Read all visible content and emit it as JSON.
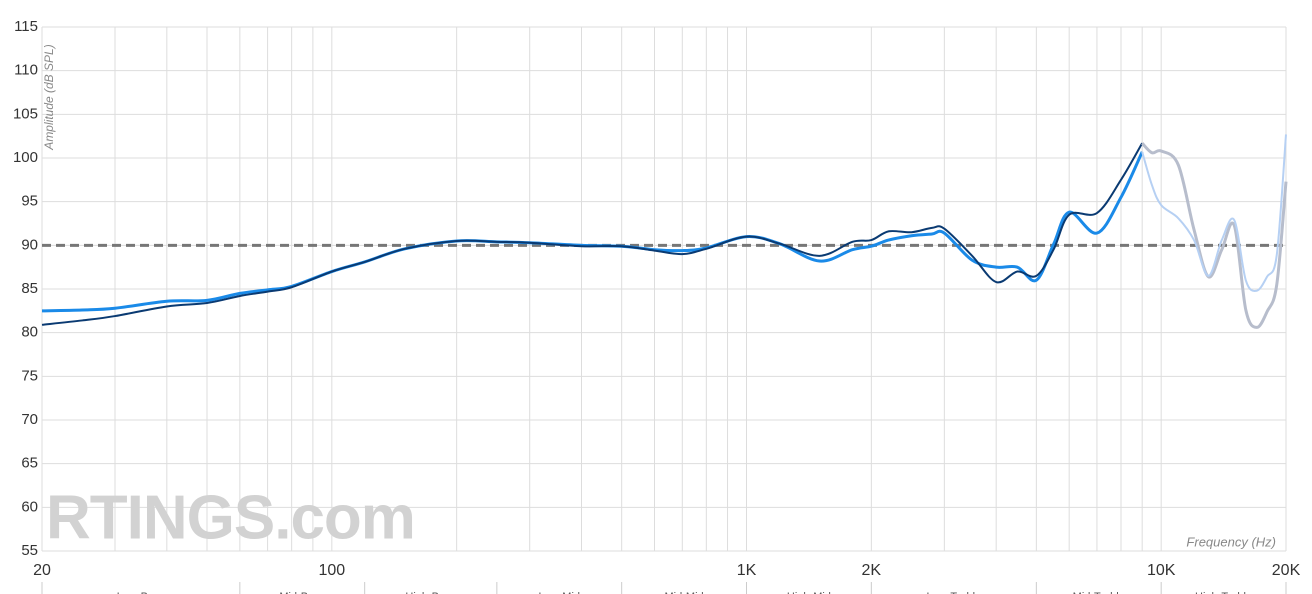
{
  "chart_data": {
    "type": "line",
    "y_label": "Amplitude (dB SPL)",
    "x_label": "Frequency (Hz)",
    "watermark": "RTINGS.com",
    "log_x": true,
    "grid": true,
    "xlim": [
      20,
      20000
    ],
    "ylim": [
      55,
      115
    ],
    "yticks": [
      55,
      60,
      65,
      70,
      75,
      80,
      85,
      90,
      95,
      100,
      105,
      110,
      115
    ],
    "xticks": [
      20,
      100,
      {
        "value": 1000,
        "label": "1K"
      },
      {
        "value": 2000,
        "label": "2K"
      },
      {
        "value": 10000,
        "label": "10K"
      },
      {
        "value": 20000,
        "label": "20K"
      }
    ],
    "x_minor_grid": [
      30,
      40,
      50,
      60,
      70,
      80,
      90,
      200,
      300,
      400,
      500,
      600,
      700,
      800,
      900,
      3000,
      4000,
      5000,
      6000,
      7000,
      8000,
      9000
    ],
    "reference_line": 90,
    "bands": {
      "labels": [
        "Low-Bass",
        "Mid-Bass",
        "High-Bass",
        "Low-Mid",
        "Mid-Mid",
        "High-Mid",
        "Low-Treble",
        "Mid-Treble",
        "High-Treble"
      ],
      "edges": [
        20,
        60,
        120,
        250,
        500,
        1000,
        2000,
        5000,
        10000,
        20000
      ]
    },
    "x": [
      20,
      25,
      30,
      40,
      50,
      60,
      70,
      80,
      100,
      120,
      150,
      200,
      250,
      300,
      400,
      500,
      600,
      700,
      800,
      1000,
      1200,
      1500,
      1800,
      2000,
      2200,
      2500,
      2800,
      3000,
      3500,
      4000,
      4500,
      5000,
      5500,
      6000,
      7000,
      8000,
      9000,
      9500,
      10000,
      11000,
      12000,
      13000,
      14000,
      15000,
      16000,
      17000,
      18000,
      19000,
      20000
    ],
    "series": [
      {
        "color": "#1a8ae8",
        "values": [
          82.5,
          82.6,
          82.8,
          83.6,
          83.7,
          84.5,
          84.9,
          85.3,
          87.0,
          88.1,
          89.6,
          90.5,
          90.4,
          90.3,
          90.0,
          89.9,
          89.5,
          89.4,
          89.7,
          91.0,
          90.2,
          88.2,
          89.5,
          89.9,
          90.6,
          91.1,
          91.3,
          91.4,
          88.3,
          87.5,
          87.5,
          86.0,
          90.1,
          93.8,
          91.4,
          95.5,
          100.7,
          null,
          null,
          null,
          null,
          null,
          null,
          null,
          null,
          null,
          null,
          null,
          null
        ]
      },
      {
        "color": "#0a3a72",
        "values": [
          80.9,
          81.4,
          81.9,
          83.0,
          83.4,
          84.2,
          84.7,
          85.2,
          87.0,
          88.1,
          89.6,
          90.5,
          90.4,
          90.3,
          89.9,
          89.9,
          89.4,
          89.0,
          89.6,
          91.0,
          90.2,
          88.8,
          90.4,
          90.6,
          91.6,
          91.5,
          92.0,
          91.9,
          88.8,
          85.8,
          87.0,
          86.5,
          89.5,
          93.5,
          93.7,
          97.5,
          101.7,
          null,
          null,
          null,
          null,
          null,
          null,
          null,
          null,
          null,
          null,
          null,
          null
        ]
      },
      {
        "color": "#b7bdcc",
        "values": [
          null,
          null,
          null,
          null,
          null,
          null,
          null,
          null,
          null,
          null,
          null,
          null,
          null,
          null,
          null,
          null,
          null,
          null,
          null,
          null,
          null,
          null,
          null,
          null,
          null,
          null,
          null,
          null,
          null,
          null,
          null,
          null,
          null,
          null,
          null,
          null,
          101.7,
          100.6,
          100.8,
          99.2,
          91.8,
          86.4,
          89.5,
          92.3,
          82.6,
          80.6,
          82.4,
          85.5,
          97.3
        ]
      },
      {
        "color": "#b6d0f3",
        "values": [
          null,
          null,
          null,
          null,
          null,
          null,
          null,
          null,
          null,
          null,
          null,
          null,
          null,
          null,
          null,
          null,
          null,
          null,
          null,
          null,
          null,
          null,
          null,
          null,
          null,
          null,
          null,
          null,
          null,
          null,
          null,
          null,
          null,
          null,
          null,
          null,
          100.7,
          96.9,
          94.6,
          93.1,
          90.6,
          86.5,
          90.6,
          92.9,
          86.0,
          84.8,
          86.4,
          88.9,
          102.7
        ]
      }
    ]
  }
}
